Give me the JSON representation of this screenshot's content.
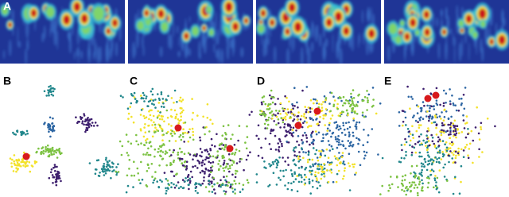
{
  "panel_labels": [
    "A",
    "B",
    "C",
    "D",
    "E"
  ]
}
